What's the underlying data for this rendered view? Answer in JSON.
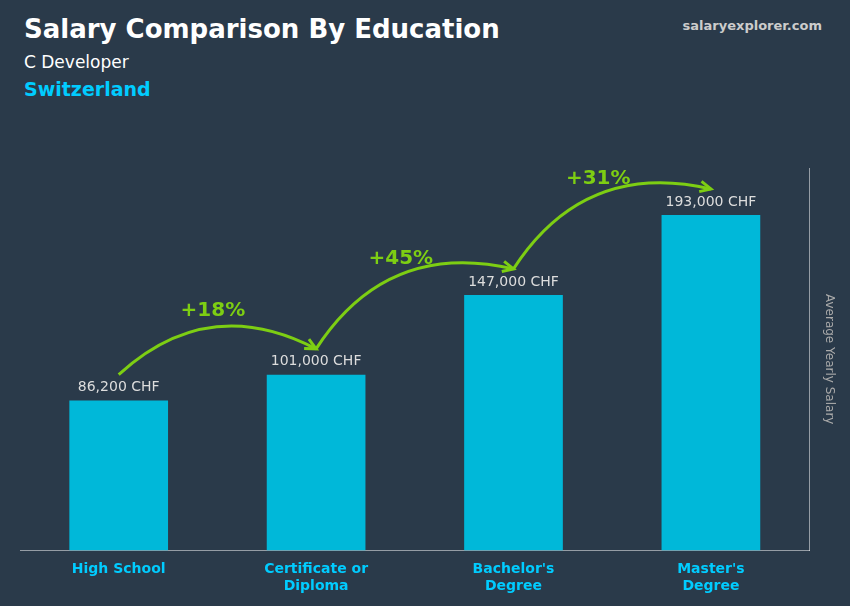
{
  "chart_data": {
    "type": "bar",
    "title": "Salary Comparison By Education",
    "subtitle": [
      "C Developer",
      "Switzerland"
    ],
    "source": "salaryexplorer.com",
    "y_label": "Average Yearly Salary",
    "categories": [
      "High School",
      "Certificate or\nDiploma",
      "Bachelor's\nDegree",
      "Master's\nDegree"
    ],
    "values": [
      86200,
      101000,
      147000,
      193000
    ],
    "value_labels": [
      "86,200 CHF",
      "101,000 CHF",
      "147,000 CHF",
      "193,000 CHF"
    ],
    "data_labels": true,
    "annotations": [
      "+18%",
      "+45%",
      "+31%"
    ],
    "color": "#00b8d9",
    "ylim": [
      0,
      220000
    ],
    "tick_labels": "x",
    "grid": false
  }
}
